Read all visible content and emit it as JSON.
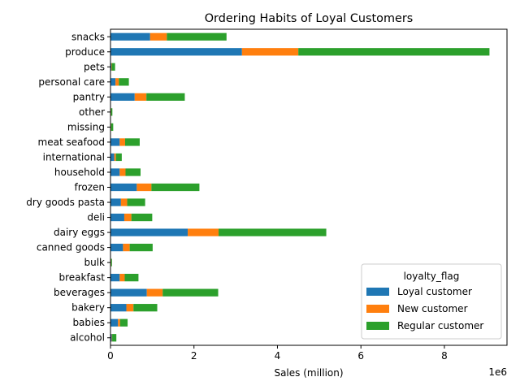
{
  "chart_data": {
    "type": "bar",
    "orientation": "horizontal",
    "stacked": true,
    "title": "Ordering Habits of Loyal Customers",
    "xlabel": "Sales (million)",
    "x_offset_label": "1e6",
    "xlim": [
      0,
      9.5
    ],
    "x_ticks": [
      0,
      2,
      4,
      6,
      8
    ],
    "grid": false,
    "legend_title": "loyalty_flag",
    "legend_position": "lower-right",
    "categories": [
      "alcohol",
      "babies",
      "bakery",
      "beverages",
      "breakfast",
      "bulk",
      "canned goods",
      "dairy eggs",
      "deli",
      "dry goods pasta",
      "frozen",
      "household",
      "international",
      "meat seafood",
      "missing",
      "other",
      "pantry",
      "personal care",
      "pets",
      "produce",
      "snacks"
    ],
    "series": [
      {
        "name": "Loyal customer",
        "color": "#1f77b4",
        "values": [
          0.03,
          0.18,
          0.38,
          0.87,
          0.22,
          0.01,
          0.3,
          1.85,
          0.33,
          0.25,
          0.63,
          0.22,
          0.09,
          0.22,
          0.01,
          0.01,
          0.58,
          0.12,
          0.02,
          3.15,
          0.95
        ]
      },
      {
        "name": "New customer",
        "color": "#ff7f0e",
        "values": [
          0.01,
          0.05,
          0.17,
          0.38,
          0.12,
          0.005,
          0.16,
          0.74,
          0.17,
          0.15,
          0.35,
          0.14,
          0.04,
          0.13,
          0.005,
          0.005,
          0.28,
          0.08,
          0.01,
          1.35,
          0.4
        ]
      },
      {
        "name": "Regular customer",
        "color": "#2ca02c",
        "values": [
          0.1,
          0.18,
          0.57,
          1.33,
          0.33,
          0.02,
          0.55,
          2.58,
          0.5,
          0.43,
          1.15,
          0.36,
          0.14,
          0.35,
          0.05,
          0.03,
          0.92,
          0.24,
          0.08,
          4.58,
          1.43
        ]
      }
    ]
  }
}
